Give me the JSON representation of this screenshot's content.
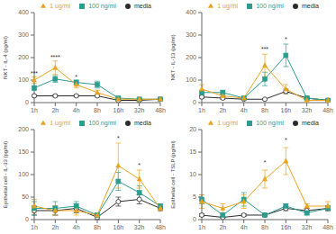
{
  "chart_data": [
    {
      "type": "line",
      "ylabel": "NKT - IL-4 (pg/ml)",
      "categories": [
        "1h",
        "2h",
        "4h",
        "8h",
        "16h",
        "32h",
        "48h"
      ],
      "ylim": [
        0,
        400
      ],
      "yticks": [
        0,
        100,
        200,
        300,
        400
      ],
      "grid": false,
      "legend": "upper right",
      "series": [
        {
          "name": "media",
          "color": "#2b2b2b",
          "marker": "circle",
          "values": [
            30,
            30,
            30,
            30,
            10,
            10,
            15
          ],
          "errors": [
            5,
            5,
            5,
            5,
            3,
            3,
            3
          ]
        },
        {
          "name": "100 ng/ml",
          "color": "#2a9d8f",
          "marker": "square",
          "values": [
            65,
            105,
            90,
            80,
            20,
            15,
            15
          ],
          "errors": [
            10,
            15,
            10,
            15,
            5,
            3,
            3
          ]
        },
        {
          "name": "1 ug/ml",
          "color": "#e9a320",
          "marker": "triangle",
          "values": [
            100,
            155,
            80,
            45,
            15,
            15,
            15
          ],
          "errors": [
            15,
            30,
            15,
            10,
            5,
            3,
            3
          ]
        }
      ],
      "annotations": [
        {
          "x": "1h",
          "y": 115,
          "text": "***"
        },
        {
          "x": "2h",
          "y": 190,
          "text": "****"
        },
        {
          "x": "4h",
          "y": 100,
          "text": "*"
        }
      ]
    },
    {
      "type": "line",
      "ylabel": "NKT - IL-13 (pg/ml)",
      "categories": [
        "1h",
        "2h",
        "4h",
        "8h",
        "16h",
        "32h",
        "48h"
      ],
      "ylim": [
        0,
        400
      ],
      "yticks": [
        0,
        100,
        200,
        300,
        400
      ],
      "grid": false,
      "legend": "upper right",
      "series": [
        {
          "name": "media",
          "color": "#2b2b2b",
          "marker": "circle",
          "values": [
            25,
            20,
            15,
            15,
            50,
            20,
            10
          ],
          "errors": [
            5,
            5,
            3,
            3,
            10,
            5,
            3
          ]
        },
        {
          "name": "100 ng/ml",
          "color": "#2a9d8f",
          "marker": "square",
          "values": [
            45,
            45,
            20,
            105,
            210,
            20,
            10
          ],
          "errors": [
            10,
            10,
            5,
            30,
            50,
            5,
            3
          ]
        },
        {
          "name": "1 ug/ml",
          "color": "#e9a320",
          "marker": "triangle",
          "values": [
            60,
            30,
            20,
            165,
            60,
            10,
            10
          ],
          "errors": [
            20,
            10,
            5,
            50,
            20,
            3,
            3
          ]
        }
      ],
      "annotations": [
        {
          "x": "8h",
          "y": 225,
          "text": "***"
        },
        {
          "x": "16h",
          "y": 270,
          "text": "*"
        }
      ]
    },
    {
      "type": "line",
      "ylabel": "Epithelial cell - IL-33 (pg/ml)",
      "categories": [
        "1h",
        "2h",
        "4h",
        "8h",
        "16h",
        "32h",
        "48h"
      ],
      "ylim": [
        0,
        200
      ],
      "yticks": [
        0,
        50,
        100,
        150,
        200
      ],
      "grid": false,
      "legend": "upper right",
      "series": [
        {
          "name": "media",
          "color": "#2b2b2b",
          "marker": "circle",
          "values": [
            20,
            20,
            25,
            5,
            40,
            45,
            25
          ],
          "errors": [
            10,
            10,
            10,
            5,
            10,
            10,
            5
          ]
        },
        {
          "name": "100 ng/ml",
          "color": "#2a9d8f",
          "marker": "square",
          "values": [
            25,
            25,
            30,
            10,
            85,
            60,
            30
          ],
          "errors": [
            15,
            15,
            10,
            5,
            20,
            15,
            5
          ]
        },
        {
          "name": "1 ug/ml",
          "color": "#e9a320",
          "marker": "triangle",
          "values": [
            30,
            20,
            20,
            10,
            120,
            90,
            25
          ],
          "errors": [
            15,
            10,
            10,
            5,
            50,
            20,
            5
          ]
        }
      ],
      "annotations": [
        {
          "x": "16h",
          "y": 175,
          "text": "*"
        },
        {
          "x": "32h",
          "y": 115,
          "text": "*"
        }
      ]
    },
    {
      "type": "line",
      "ylabel": "Epithelial cell - TSLP (pg/ml)",
      "categories": [
        "1h",
        "2h",
        "4h",
        "8h",
        "16h",
        "32h",
        "48h"
      ],
      "ylim": [
        0,
        20
      ],
      "yticks": [
        0,
        5,
        10,
        15,
        20
      ],
      "grid": false,
      "legend": "upper right",
      "series": [
        {
          "name": "media",
          "color": "#2b2b2b",
          "marker": "circle",
          "values": [
            1.0,
            0.5,
            1.0,
            1.0,
            2.5,
            2.0,
            2.5
          ],
          "errors": [
            0.3,
            0.2,
            0.3,
            0.3,
            0.5,
            0.5,
            0.5
          ]
        },
        {
          "name": "100 ng/ml",
          "color": "#2a9d8f",
          "marker": "square",
          "values": [
            4.5,
            1.0,
            4.5,
            1.0,
            3.0,
            1.5,
            2.5
          ],
          "errors": [
            1.0,
            0.5,
            1.5,
            0.3,
            0.5,
            0.5,
            0.5
          ]
        },
        {
          "name": "1 ug/ml",
          "color": "#e9a320",
          "marker": "triangle",
          "values": [
            4.0,
            2.5,
            4.0,
            9.0,
            13.0,
            3.0,
            3.0
          ],
          "errors": [
            1.5,
            1.0,
            1.5,
            2.0,
            3.0,
            0.5,
            1.0
          ]
        }
      ],
      "annotations": [
        {
          "x": "8h",
          "y": 12,
          "text": "*"
        },
        {
          "x": "16h",
          "y": 17,
          "text": "*"
        }
      ]
    }
  ]
}
